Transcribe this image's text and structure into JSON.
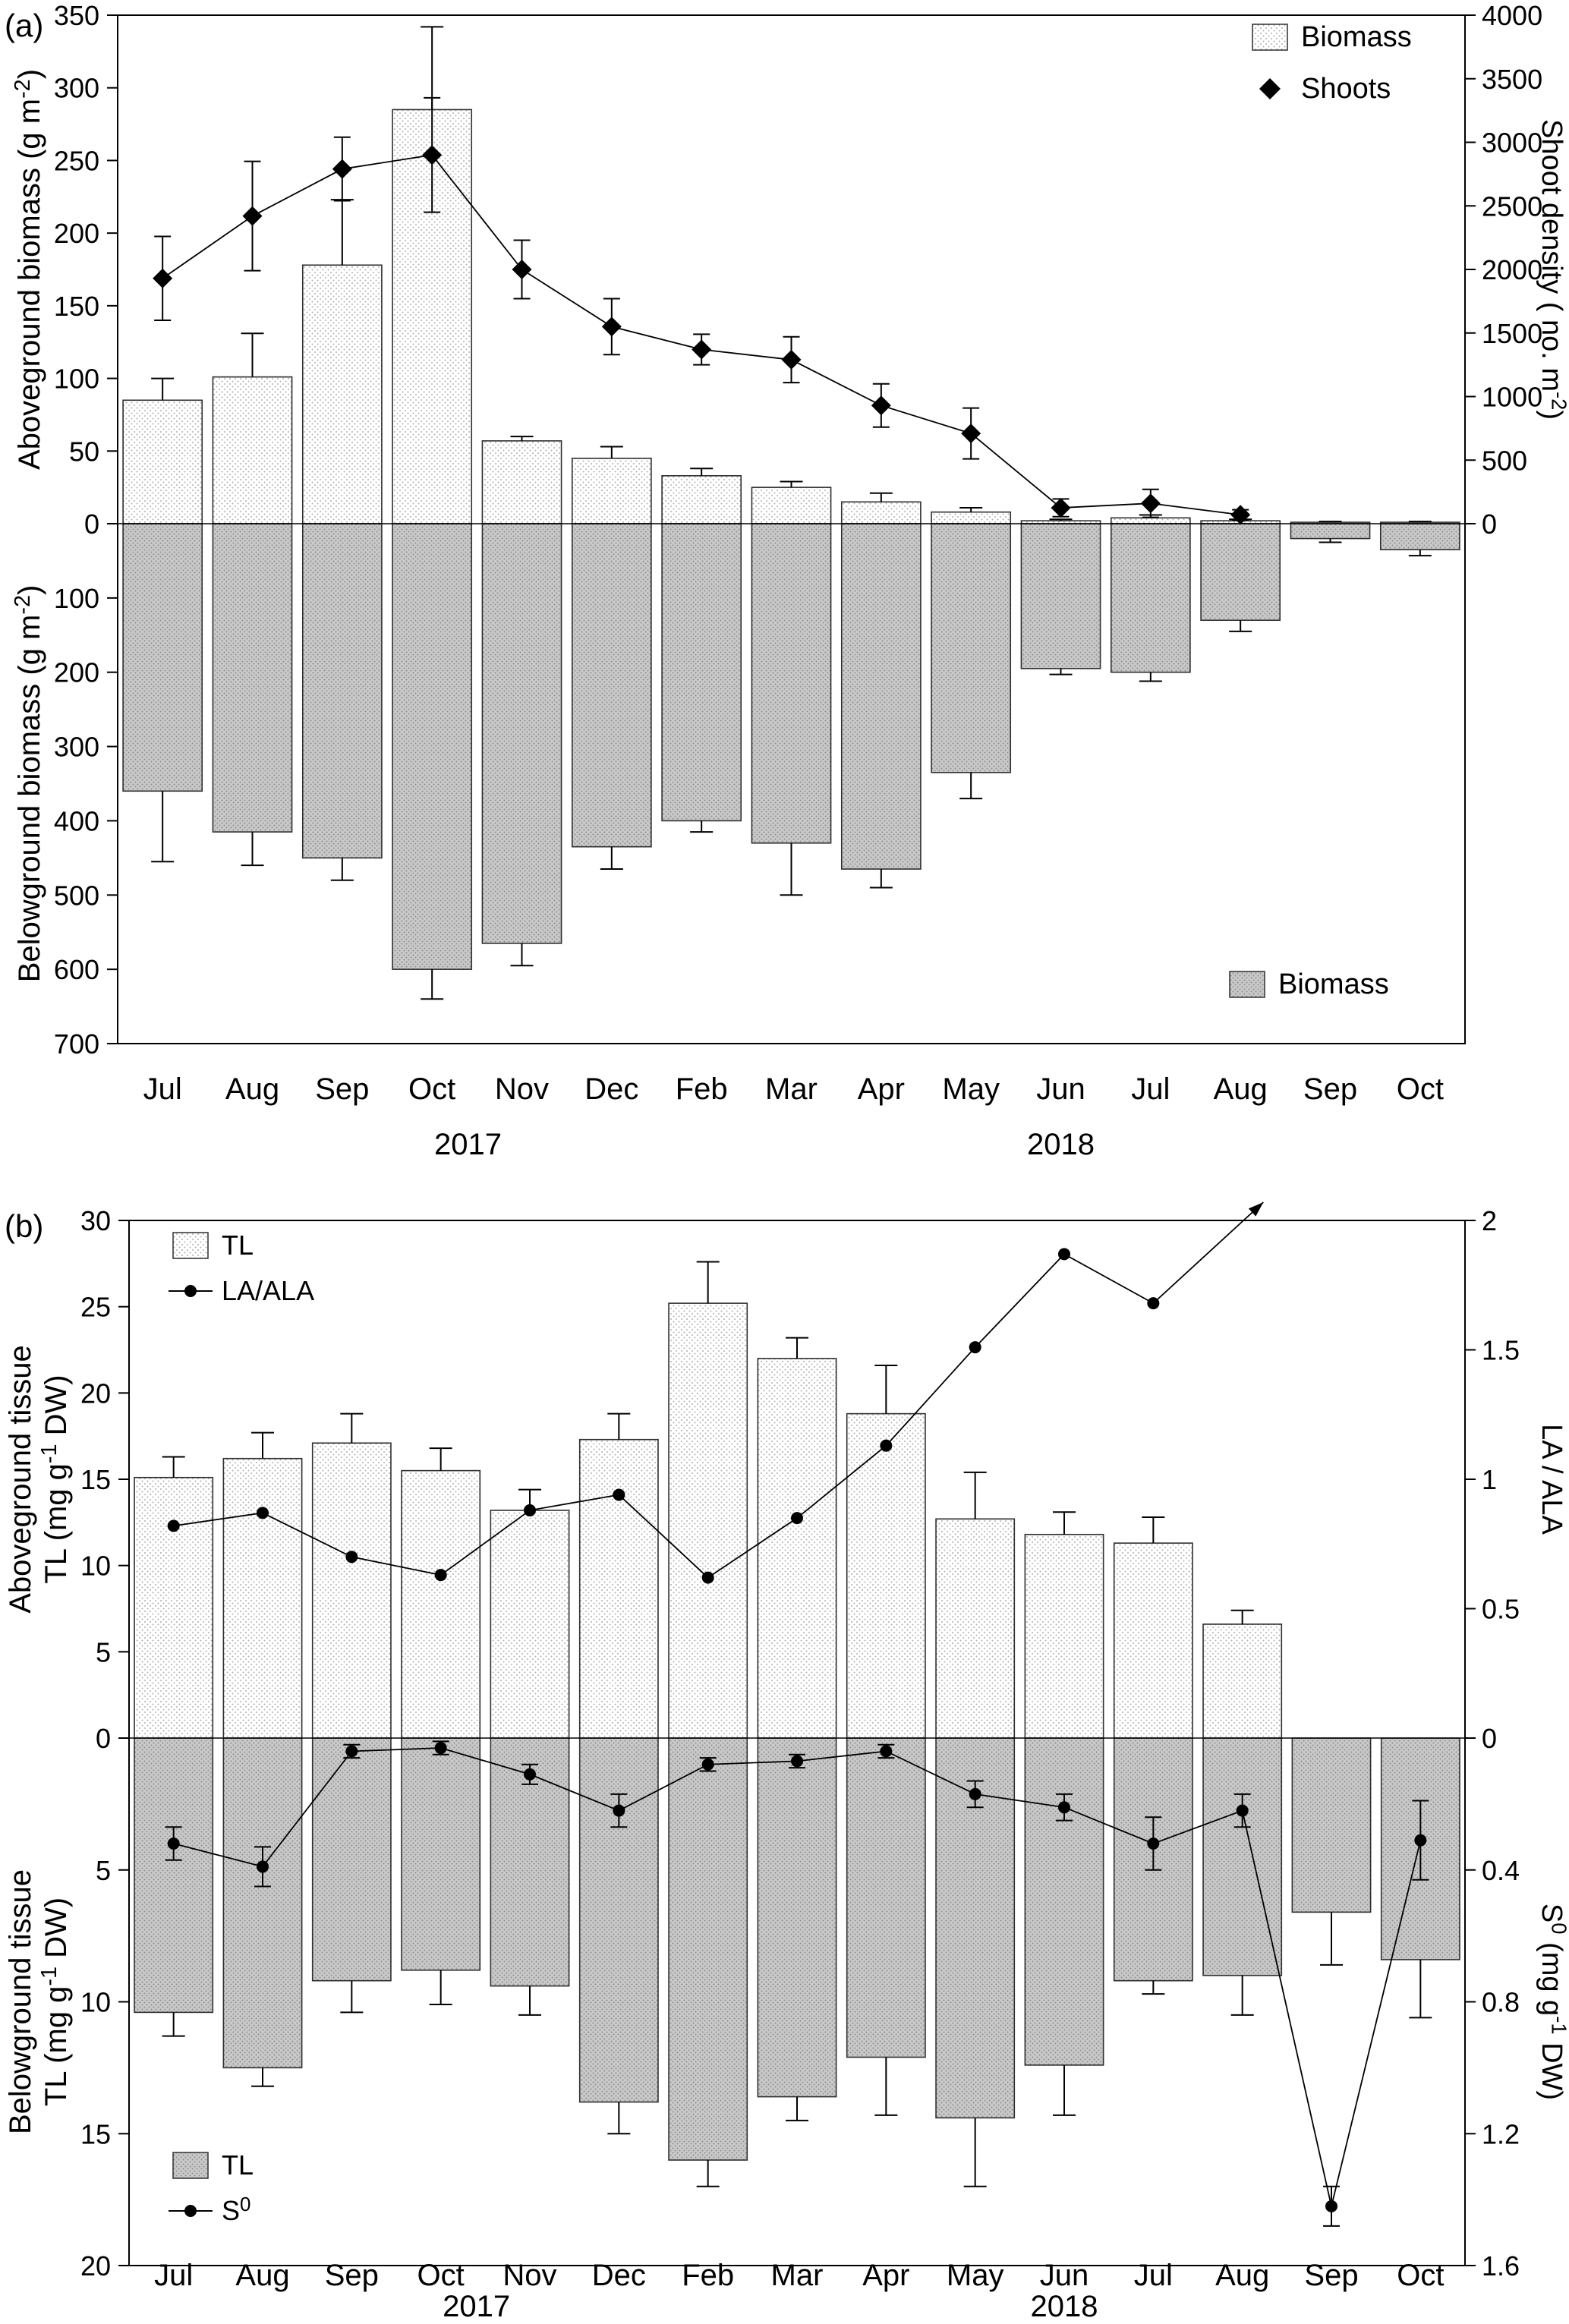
{
  "figure": {
    "panel_a_label": "(a)",
    "panel_b_label": "(b)"
  },
  "chart_data": [
    {
      "id": "a",
      "type": "bar",
      "categories": [
        "Jul",
        "Aug",
        "Sep",
        "Oct",
        "Nov",
        "Dec",
        "Feb",
        "Mar",
        "Apr",
        "May",
        "Jun",
        "Jul",
        "Aug",
        "Sep",
        "Oct"
      ],
      "years": [
        {
          "label": "2017",
          "index": 3.4
        },
        {
          "label": "2018",
          "index": 10
        }
      ],
      "top": {
        "ylabel_lines": [
          [
            {
              "t": "Aboveground biomass (g m"
            },
            {
              "t": "-2",
              "sup": true
            },
            {
              "t": ")"
            }
          ]
        ],
        "ylim": [
          0,
          350
        ],
        "yticks": [
          0,
          50,
          100,
          150,
          200,
          250,
          300,
          350
        ],
        "bars": {
          "name": "Biomass",
          "values": [
            85,
            101,
            178,
            285,
            57,
            45,
            33,
            25,
            15,
            8,
            2,
            4,
            2,
            1,
            1
          ],
          "errors": [
            15,
            30,
            45,
            57,
            3,
            8,
            5,
            4,
            6,
            3,
            1,
            2,
            1,
            0.5,
            0.5
          ]
        },
        "right_axis": {
          "ylabel_lines": [
            [
              {
                "t": "Shoot density ( no. m"
              },
              {
                "t": "-2",
                "sup": true
              },
              {
                "t": ")"
              }
            ]
          ],
          "ylim": [
            0,
            4000
          ],
          "yticks": [
            0,
            500,
            1000,
            1500,
            2000,
            2500,
            3000,
            3500,
            4000
          ],
          "line": {
            "name": "Shoots",
            "marker": "diamond",
            "values": [
              1930,
              2420,
              2790,
              2900,
              2000,
              1550,
              1370,
              1290,
              930,
              710,
              125,
              160,
              70,
              null,
              null
            ],
            "errors": [
              330,
              430,
              250,
              450,
              230,
              220,
              120,
              180,
              170,
              200,
              70,
              110,
              40,
              null,
              null
            ]
          }
        },
        "legend": [
          {
            "swatch": "bar-light",
            "label": "Biomass"
          },
          {
            "swatch": "diamond",
            "label": "Shoots"
          }
        ]
      },
      "bottom": {
        "ylabel_lines": [
          [
            {
              "t": "Belowground biomass (g m"
            },
            {
              "t": "-2",
              "sup": true
            },
            {
              "t": ")"
            }
          ]
        ],
        "ylim": [
          0,
          700
        ],
        "yticks": [
          100,
          200,
          300,
          400,
          500,
          600,
          700
        ],
        "bars": {
          "name": "Biomass",
          "values": [
            360,
            415,
            450,
            600,
            565,
            435,
            400,
            430,
            465,
            335,
            195,
            200,
            130,
            20,
            35
          ],
          "errors": [
            95,
            45,
            30,
            40,
            30,
            30,
            15,
            70,
            25,
            35,
            8,
            12,
            15,
            5,
            8
          ]
        },
        "legend": [
          {
            "swatch": "bar-gray",
            "label": "Biomass"
          }
        ]
      }
    },
    {
      "id": "b",
      "type": "bar",
      "categories": [
        "Jul",
        "Aug",
        "Sep",
        "Oct",
        "Nov",
        "Dec",
        "Feb",
        "Mar",
        "Apr",
        "May",
        "Jun",
        "Jul",
        "Aug",
        "Sep",
        "Oct"
      ],
      "years": [
        {
          "label": "2017",
          "index": 3.4
        },
        {
          "label": "2018",
          "index": 10
        }
      ],
      "top": {
        "ylabel_lines": [
          [
            {
              "t": "Aboveground tissue"
            }
          ],
          [
            {
              "t": "TL (mg g"
            },
            {
              "t": "-1",
              "sup": true
            },
            {
              "t": " DW)"
            }
          ]
        ],
        "ylim": [
          0,
          30
        ],
        "yticks": [
          0,
          5,
          10,
          15,
          20,
          25,
          30
        ],
        "bars": {
          "name": "TL",
          "values": [
            15.1,
            16.2,
            17.1,
            15.5,
            13.2,
            17.3,
            25.2,
            22,
            18.8,
            12.7,
            11.8,
            11.3,
            6.6,
            null,
            null
          ],
          "errors": [
            1.2,
            1.5,
            1.7,
            1.3,
            1.2,
            1.5,
            2.4,
            1.2,
            2.8,
            2.7,
            1.3,
            1.5,
            0.8,
            null,
            null
          ]
        },
        "right_axis": {
          "ylabel_lines": [
            [
              {
                "t": "LA / ALA"
              }
            ]
          ],
          "ylim": [
            0,
            2
          ],
          "yticks": [
            0,
            0.5,
            1,
            1.5,
            2
          ],
          "line": {
            "name": "LA/ALA",
            "marker": "circle",
            "arrow": true,
            "values": [
              0.82,
              0.87,
              0.7,
              0.63,
              0.88,
              0.94,
              0.62,
              0.85,
              1.13,
              1.51,
              1.87,
              1.68,
              null,
              null,
              null
            ],
            "errors": [
              null,
              null,
              null,
              null,
              null,
              null,
              null,
              null,
              null,
              null,
              null,
              null,
              null,
              null,
              null
            ]
          }
        },
        "legend": [
          {
            "swatch": "bar-light",
            "label": "TL"
          },
          {
            "swatch": "line-dot",
            "label": "LA/ALA"
          }
        ]
      },
      "bottom": {
        "ylabel_lines": [
          [
            {
              "t": "Belowground tissue"
            }
          ],
          [
            {
              "t": "TL (mg g"
            },
            {
              "t": "-1",
              "sup": true
            },
            {
              "t": " DW)"
            }
          ]
        ],
        "ylim": [
          0,
          20
        ],
        "yticks": [
          5,
          10,
          15,
          20
        ],
        "bars": {
          "name": "TL",
          "values": [
            10.4,
            12.5,
            9.2,
            8.8,
            9.4,
            13.8,
            16,
            13.6,
            12.1,
            14.4,
            12.4,
            9.2,
            9,
            6.6,
            8.4
          ],
          "errors": [
            0.9,
            0.7,
            1.2,
            1.3,
            1.1,
            1.2,
            1,
            0.9,
            2.2,
            2.6,
            1.9,
            0.5,
            1.5,
            2,
            2.2
          ]
        },
        "right_axis": {
          "ylabel_lines": [
            [
              {
                "t": "S"
              },
              {
                "t": "0",
                "sup": true
              },
              {
                "t": " (mg g"
              },
              {
                "t": "-1",
                "sup": true
              },
              {
                "t": " DW)"
              }
            ]
          ],
          "ylim": [
            0,
            1.6
          ],
          "yticks": [
            0.4,
            0.8,
            1.2,
            1.6
          ],
          "line": {
            "name": "S0",
            "marker": "circle",
            "values": [
              0.32,
              0.39,
              0.04,
              0.03,
              0.11,
              0.22,
              0.08,
              0.07,
              0.04,
              0.17,
              0.21,
              0.32,
              0.22,
              1.42,
              0.31
            ],
            "errors": [
              0.05,
              0.06,
              0.02,
              0.02,
              0.03,
              0.05,
              0.02,
              0.02,
              0.02,
              0.04,
              0.04,
              0.08,
              0.05,
              0.06,
              0.12
            ]
          }
        },
        "legend": [
          {
            "swatch": "bar-gray",
            "label": "TL"
          },
          {
            "swatch": "line-dot",
            "label": [
              {
                "t": "S"
              },
              {
                "t": "0",
                "sup": true
              }
            ]
          }
        ]
      }
    }
  ]
}
